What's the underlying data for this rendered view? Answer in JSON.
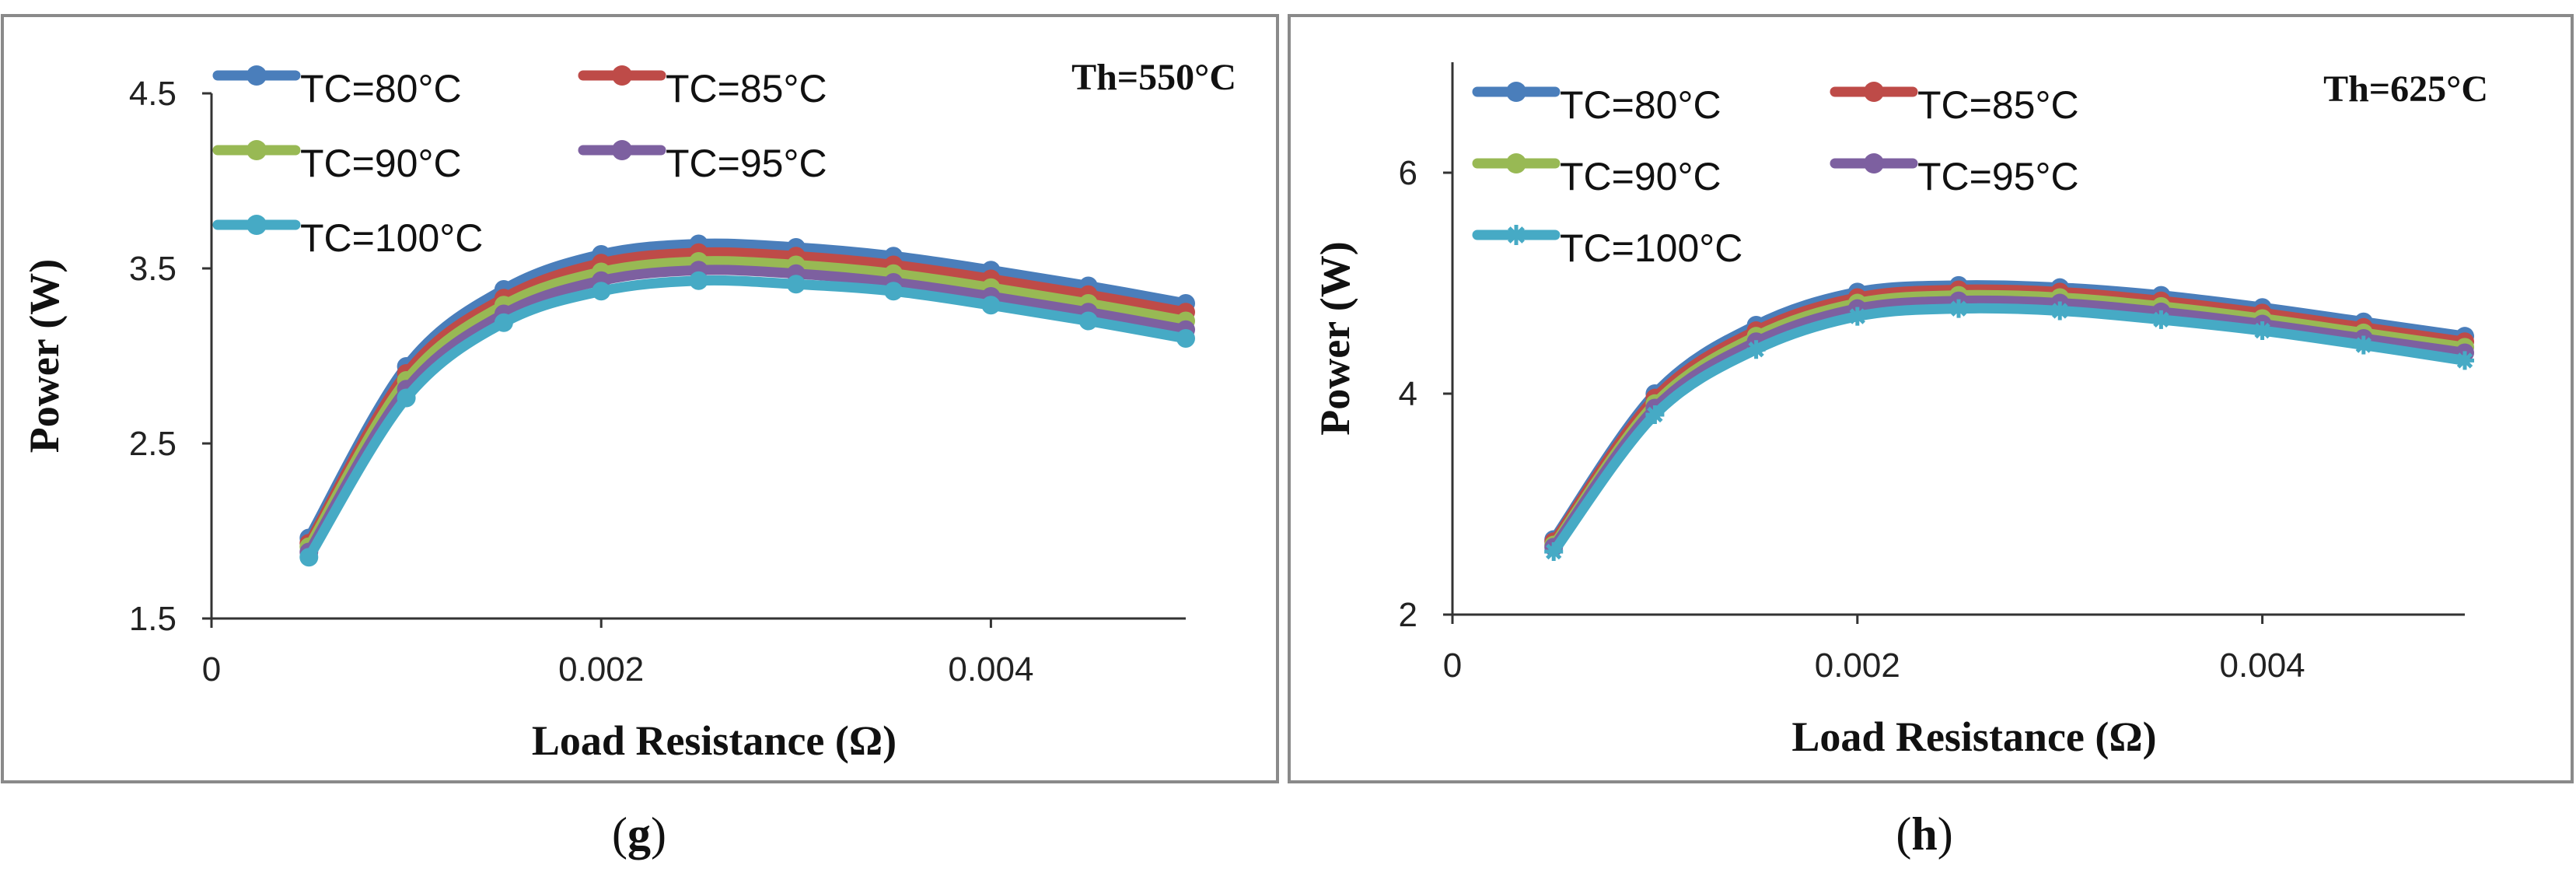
{
  "colors": {
    "TC=80°C": "#4a7ebb",
    "TC=85°C": "#be4b48",
    "TC=90°C": "#98b954",
    "TC=95°C": "#7d60a0",
    "TC=100°C": "#46aac5"
  },
  "chart_data": [
    {
      "type": "line",
      "panel": "(g)",
      "panel_letter": "g",
      "annotation": "Th=550°C",
      "xlabel": "Load Resistance (Ω)",
      "ylabel": "Power (W)",
      "xlim": [
        0,
        0.005
      ],
      "ylim": [
        1.5,
        4.5
      ],
      "xticks": [
        0,
        0.002,
        0.004
      ],
      "xtick_labels": [
        "0",
        "0.002",
        "0.004"
      ],
      "yticks": [
        1.5,
        2.5,
        3.5,
        4.5
      ],
      "ytick_labels": [
        "1.5",
        "2.5",
        "3.5",
        "4.5"
      ],
      "legend_position": "top-left",
      "x": [
        0.0005,
        0.001,
        0.0015,
        0.002,
        0.0025,
        0.003,
        0.0035,
        0.004,
        0.0045,
        0.005
      ],
      "series": [
        {
          "name": "TC=80°C",
          "marker": "circle",
          "values": [
            1.96,
            2.94,
            3.38,
            3.58,
            3.64,
            3.62,
            3.57,
            3.49,
            3.4,
            3.3
          ]
        },
        {
          "name": "TC=85°C",
          "marker": "circle",
          "values": [
            1.93,
            2.9,
            3.33,
            3.53,
            3.59,
            3.57,
            3.52,
            3.44,
            3.35,
            3.25
          ]
        },
        {
          "name": "TC=90°C",
          "marker": "circle",
          "values": [
            1.91,
            2.86,
            3.29,
            3.48,
            3.54,
            3.52,
            3.47,
            3.39,
            3.3,
            3.2
          ]
        },
        {
          "name": "TC=95°C",
          "marker": "circle",
          "values": [
            1.88,
            2.81,
            3.24,
            3.43,
            3.49,
            3.47,
            3.42,
            3.34,
            3.25,
            3.15
          ]
        },
        {
          "name": "TC=100°C",
          "marker": "circle",
          "values": [
            1.85,
            2.76,
            3.19,
            3.37,
            3.43,
            3.41,
            3.37,
            3.29,
            3.2,
            3.1
          ]
        }
      ]
    },
    {
      "type": "line",
      "panel": "(h)",
      "panel_letter": "h",
      "annotation": "Th=625°C",
      "xlabel": "Load Resistance (Ω)",
      "ylabel": "Power (W)",
      "xlim": [
        0,
        0.005
      ],
      "ylim": [
        2,
        7
      ],
      "xticks": [
        0,
        0.002,
        0.004
      ],
      "xtick_labels": [
        "0",
        "0.002",
        "0.004"
      ],
      "yticks": [
        2,
        4,
        6
      ],
      "ytick_labels": [
        "2",
        "4",
        "6"
      ],
      "legend_position": "top-left",
      "x": [
        0.0005,
        0.001,
        0.0015,
        0.002,
        0.0025,
        0.003,
        0.0035,
        0.004,
        0.0045,
        0.005
      ],
      "series": [
        {
          "name": "TC=80°C",
          "marker": "circle",
          "values": [
            2.68,
            4.0,
            4.62,
            4.92,
            4.98,
            4.96,
            4.89,
            4.78,
            4.65,
            4.52
          ]
        },
        {
          "name": "TC=85°C",
          "marker": "circle",
          "values": [
            2.66,
            3.96,
            4.57,
            4.87,
            4.94,
            4.92,
            4.84,
            4.73,
            4.6,
            4.47
          ]
        },
        {
          "name": "TC=90°C",
          "marker": "circle",
          "values": [
            2.63,
            3.91,
            4.52,
            4.82,
            4.89,
            4.87,
            4.79,
            4.68,
            4.55,
            4.42
          ]
        },
        {
          "name": "TC=95°C",
          "marker": "circle",
          "values": [
            2.61,
            3.87,
            4.47,
            4.77,
            4.84,
            4.82,
            4.74,
            4.63,
            4.5,
            4.37
          ]
        },
        {
          "name": "TC=100°C",
          "marker": "star",
          "values": [
            2.57,
            3.81,
            4.4,
            4.7,
            4.77,
            4.75,
            4.67,
            4.57,
            4.44,
            4.3
          ]
        }
      ]
    }
  ]
}
